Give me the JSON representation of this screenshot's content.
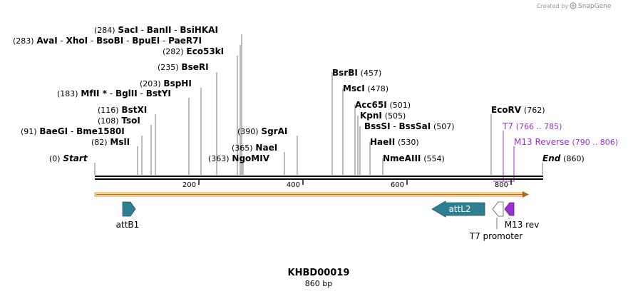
{
  "header": {
    "credit": "Created by",
    "brand": "SnapGene"
  },
  "map": {
    "name": "KHBD00019",
    "length_label": "860 bp",
    "start_label": "Start",
    "start_pos": "(0)",
    "end_label": "End",
    "end_pos": "(860)",
    "ticks": [
      "200",
      "400",
      "600",
      "800"
    ]
  },
  "sites": {
    "s284": {
      "pos": "(284)",
      "names": [
        "SacI",
        "BanII",
        "BsiHKAI"
      ]
    },
    "s283": {
      "pos": "(283)",
      "names": [
        "AvaI",
        "XhoI",
        "BsoBI",
        "BpuEI",
        "PaeR7I"
      ]
    },
    "s282": {
      "pos": "(282)",
      "names": [
        "Eco53kI"
      ]
    },
    "s235": {
      "pos": "(235)",
      "names": [
        "BseRI"
      ]
    },
    "s203": {
      "pos": "(203)",
      "names": [
        "BspHI"
      ]
    },
    "s183": {
      "pos": "(183)",
      "names": [
        "MfII *",
        "BglII",
        "BstYI"
      ]
    },
    "s116": {
      "pos": "(116)",
      "names": [
        "BstXI"
      ]
    },
    "s108": {
      "pos": "(108)",
      "names": [
        "TsoI"
      ]
    },
    "s91": {
      "pos": "(91)",
      "names": [
        "BaeGI",
        "Bme1580I"
      ]
    },
    "s82": {
      "pos": "(82)",
      "names": [
        "MslI"
      ]
    },
    "s390": {
      "pos": "(390)",
      "names": [
        "SgrAI"
      ]
    },
    "s365": {
      "pos": "(365)",
      "names": [
        "NaeI"
      ]
    },
    "s363": {
      "pos": "(363)",
      "names": [
        "NgoMIV"
      ]
    },
    "s457": {
      "pos": "(457)",
      "names": [
        "BsrBI"
      ]
    },
    "s478": {
      "pos": "(478)",
      "names": [
        "MscI"
      ]
    },
    "s501": {
      "pos": "(501)",
      "names": [
        "Acc65I"
      ]
    },
    "s505": {
      "pos": "(505)",
      "names": [
        "KpnI"
      ]
    },
    "s507": {
      "pos": "(507)",
      "names": [
        "BssSI",
        "BssSaI"
      ]
    },
    "s530": {
      "pos": "(530)",
      "names": [
        "HaeII"
      ]
    },
    "s554": {
      "pos": "(554)",
      "names": [
        "NmeAIII"
      ]
    },
    "s762": {
      "pos": "(762)",
      "names": [
        "EcoRV"
      ]
    }
  },
  "primers": {
    "t7": {
      "name": "T7",
      "range": "(766 .. 785)"
    },
    "m13": {
      "name": "M13 Reverse",
      "range": "(790 .. 806)"
    }
  },
  "features": {
    "attb1": {
      "label": "attB1"
    },
    "attl2": {
      "label": "attL2"
    },
    "t7p": {
      "label": "T7 promoter"
    },
    "m13rev": {
      "label": "M13 rev"
    }
  },
  "colors": {
    "feature_teal": "#2f7f92",
    "primer_purple": "#9b2fd6",
    "orf_orange": "#e8a23a",
    "backbone": "#000000"
  }
}
